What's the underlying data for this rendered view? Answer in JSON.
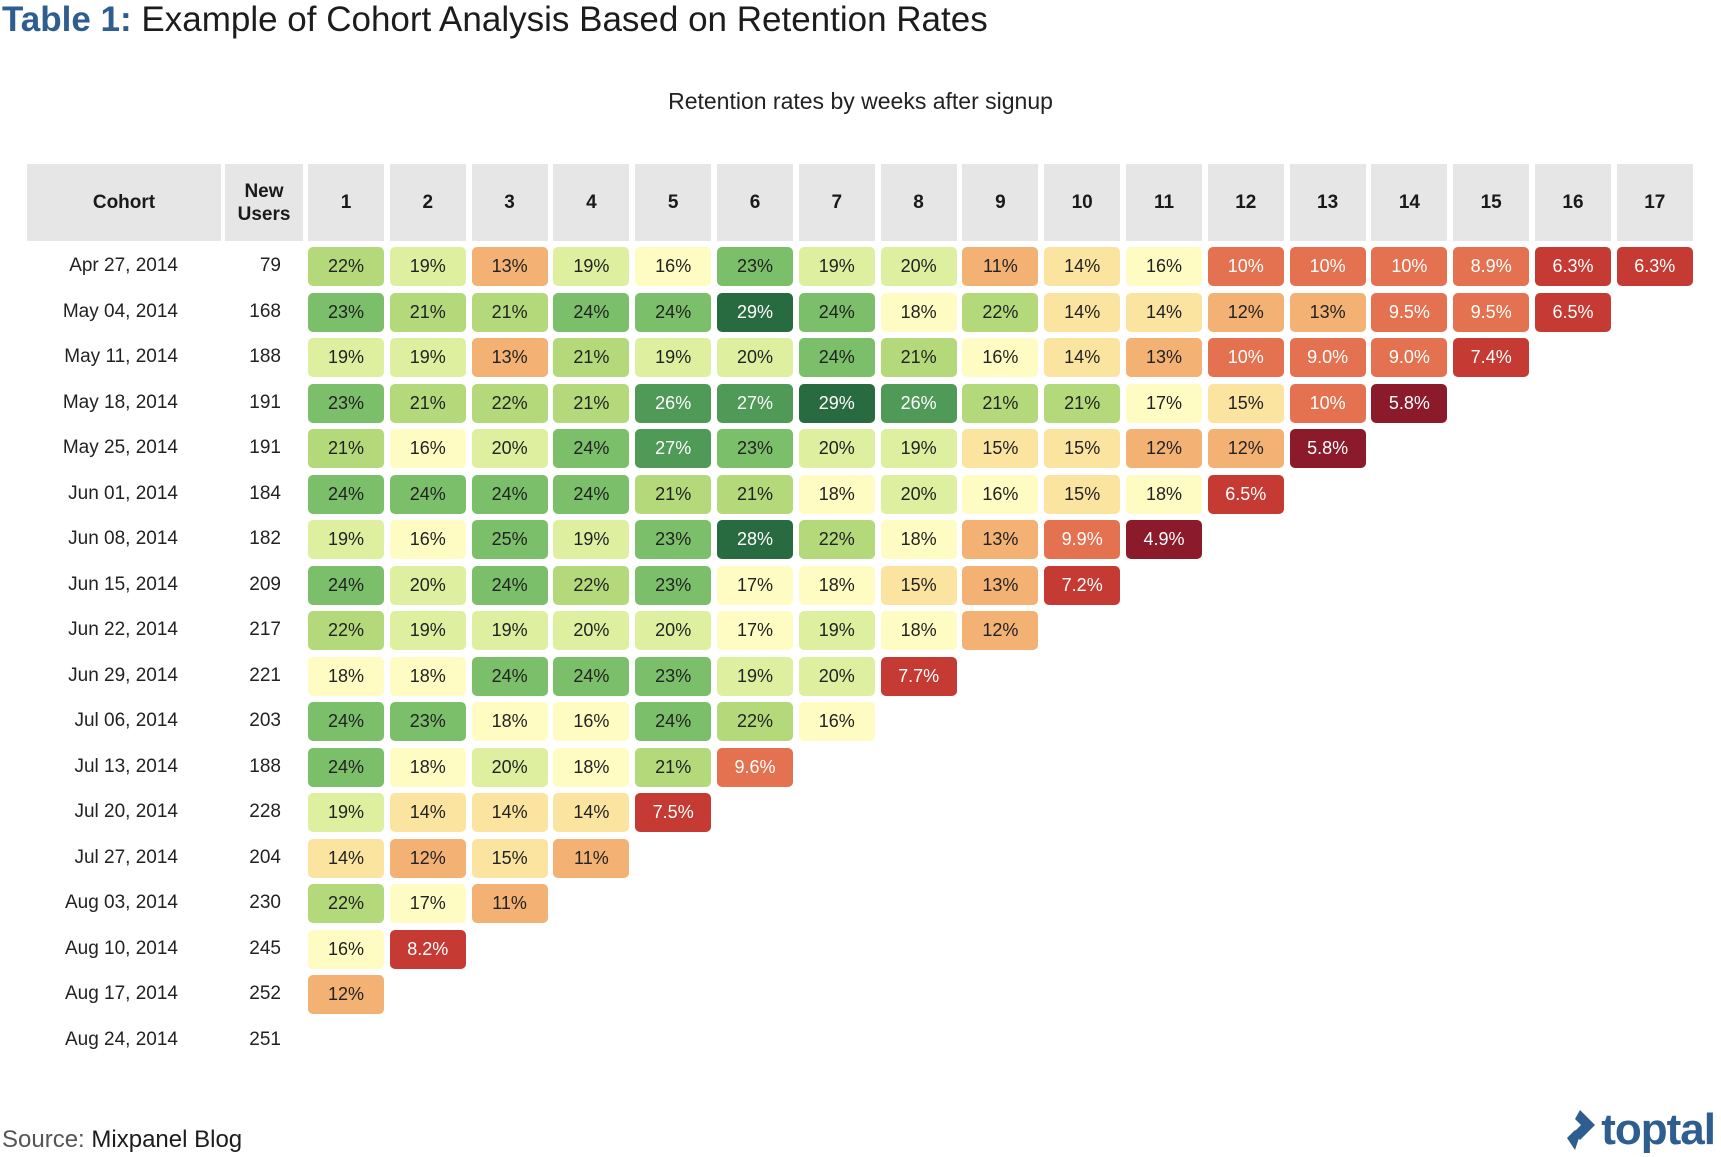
{
  "title": {
    "prefix": "Table 1:",
    "text": "Example of Cohort Analysis Based on Retention Rates"
  },
  "subtitle": "Retention rates by weeks after signup",
  "source": {
    "label": "Source:",
    "value": "Mixpanel Blog"
  },
  "logo": {
    "text": "toptal",
    "icon": "toptal-diamond-icon"
  },
  "chart_data": {
    "type": "heatmap",
    "title": "Example of Cohort Analysis Based on Retention Rates",
    "subtitle": "Retention rates by weeks after signup",
    "columns": {
      "cohort": "Cohort",
      "new_users": "New Users"
    },
    "weeks": [
      1,
      2,
      3,
      4,
      5,
      6,
      7,
      8,
      9,
      10,
      11,
      12,
      13,
      14,
      15,
      16,
      17
    ],
    "color_scale": [
      "#8b1a2b",
      "#c53a33",
      "#e4714f",
      "#f3b173",
      "#fbe3a0",
      "#fefcc2",
      "#dfefa0",
      "#b3d97a",
      "#7cbf6b",
      "#4f9a57",
      "#286b40"
    ],
    "rows": [
      {
        "cohort": "Apr 27, 2014",
        "new_users": 79,
        "values": [
          "22%",
          "19%",
          "13%",
          "19%",
          "16%",
          "23%",
          "19%",
          "20%",
          "11%",
          "14%",
          "16%",
          "10%",
          "10%",
          "10%",
          "8.9%",
          "6.3%",
          "6.3%"
        ]
      },
      {
        "cohort": "May 04, 2014",
        "new_users": 168,
        "values": [
          "23%",
          "21%",
          "21%",
          "24%",
          "24%",
          "29%",
          "24%",
          "18%",
          "22%",
          "14%",
          "14%",
          "12%",
          "13%",
          "9.5%",
          "9.5%",
          "6.5%"
        ]
      },
      {
        "cohort": "May 11, 2014",
        "new_users": 188,
        "values": [
          "19%",
          "19%",
          "13%",
          "21%",
          "19%",
          "20%",
          "24%",
          "21%",
          "16%",
          "14%",
          "13%",
          "10%",
          "9.0%",
          "9.0%",
          "7.4%"
        ]
      },
      {
        "cohort": "May 18, 2014",
        "new_users": 191,
        "values": [
          "23%",
          "21%",
          "22%",
          "21%",
          "26%",
          "27%",
          "29%",
          "26%",
          "21%",
          "21%",
          "17%",
          "15%",
          "10%",
          "5.8%"
        ]
      },
      {
        "cohort": "May 25, 2014",
        "new_users": 191,
        "values": [
          "21%",
          "16%",
          "20%",
          "24%",
          "27%",
          "23%",
          "20%",
          "19%",
          "15%",
          "15%",
          "12%",
          "12%",
          "5.8%"
        ]
      },
      {
        "cohort": "Jun 01, 2014",
        "new_users": 184,
        "values": [
          "24%",
          "24%",
          "24%",
          "24%",
          "21%",
          "21%",
          "18%",
          "20%",
          "16%",
          "15%",
          "18%",
          "6.5%"
        ]
      },
      {
        "cohort": "Jun 08, 2014",
        "new_users": 182,
        "values": [
          "19%",
          "16%",
          "25%",
          "19%",
          "23%",
          "28%",
          "22%",
          "18%",
          "13%",
          "9.9%",
          "4.9%"
        ]
      },
      {
        "cohort": "Jun 15, 2014",
        "new_users": 209,
        "values": [
          "24%",
          "20%",
          "24%",
          "22%",
          "23%",
          "17%",
          "18%",
          "15%",
          "13%",
          "7.2%"
        ]
      },
      {
        "cohort": "Jun 22, 2014",
        "new_users": 217,
        "values": [
          "22%",
          "19%",
          "19%",
          "20%",
          "20%",
          "17%",
          "19%",
          "18%",
          "12%"
        ]
      },
      {
        "cohort": "Jun 29, 2014",
        "new_users": 221,
        "values": [
          "18%",
          "18%",
          "24%",
          "24%",
          "23%",
          "19%",
          "20%",
          "7.7%"
        ]
      },
      {
        "cohort": "Jul 06, 2014",
        "new_users": 203,
        "values": [
          "24%",
          "23%",
          "18%",
          "16%",
          "24%",
          "22%",
          "16%"
        ]
      },
      {
        "cohort": "Jul 13, 2014",
        "new_users": 188,
        "values": [
          "24%",
          "18%",
          "20%",
          "18%",
          "21%",
          "9.6%"
        ]
      },
      {
        "cohort": "Jul 20, 2014",
        "new_users": 228,
        "values": [
          "19%",
          "14%",
          "14%",
          "14%",
          "7.5%"
        ]
      },
      {
        "cohort": "Jul 27, 2014",
        "new_users": 204,
        "values": [
          "14%",
          "12%",
          "15%",
          "11%"
        ]
      },
      {
        "cohort": "Aug 03, 2014",
        "new_users": 230,
        "values": [
          "22%",
          "17%",
          "11%"
        ]
      },
      {
        "cohort": "Aug 10, 2014",
        "new_users": 245,
        "values": [
          "16%",
          "8.2%"
        ]
      },
      {
        "cohort": "Aug 17, 2014",
        "new_users": 252,
        "values": [
          "12%"
        ]
      },
      {
        "cohort": "Aug 24, 2014",
        "new_users": 251,
        "values": []
      }
    ]
  }
}
